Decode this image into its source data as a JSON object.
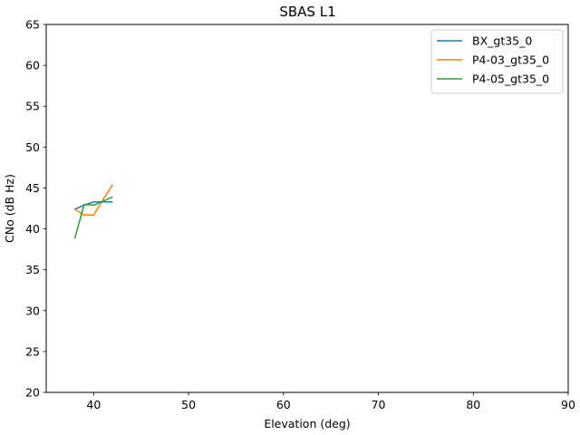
{
  "chart_data": {
    "type": "line",
    "title": "SBAS L1",
    "xlabel": "Elevation (deg)",
    "ylabel": "CNo (dB Hz)",
    "xlim": [
      35,
      90
    ],
    "ylim": [
      20,
      65
    ],
    "xticks": [
      40,
      50,
      60,
      70,
      80,
      90
    ],
    "yticks": [
      20,
      25,
      30,
      35,
      40,
      45,
      50,
      55,
      60,
      65
    ],
    "grid": false,
    "legend_position": "top-right",
    "series": [
      {
        "name": "BX_gt35_0",
        "color": "#1f77b4",
        "x": [
          38,
          39,
          40,
          41,
          42
        ],
        "y": [
          42.4,
          42.9,
          43.3,
          43.3,
          43.3
        ]
      },
      {
        "name": "P4-03_gt35_0",
        "color": "#ff7f0e",
        "x": [
          38,
          39,
          40,
          41,
          42
        ],
        "y": [
          42.4,
          41.7,
          41.7,
          43.6,
          45.4
        ]
      },
      {
        "name": "P4-05_gt35_0",
        "color": "#2ca02c",
        "x": [
          38,
          39,
          40,
          41,
          42
        ],
        "y": [
          38.8,
          43.0,
          42.9,
          43.4,
          43.9
        ]
      }
    ]
  }
}
